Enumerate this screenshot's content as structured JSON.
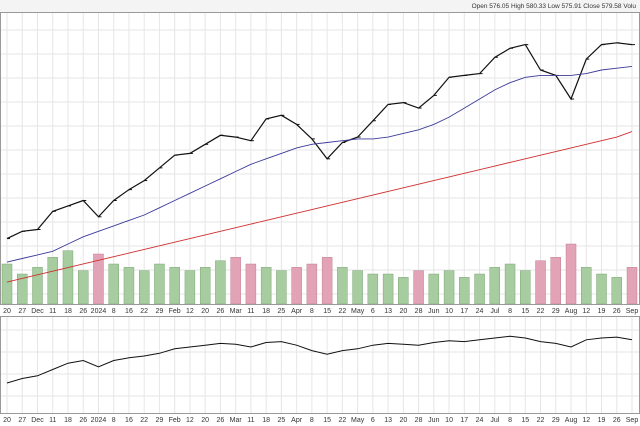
{
  "chart_data": [
    {
      "type": "line",
      "title": "Open 576.05 High 580.33 Low 575.91 Close 579.58 Volu",
      "categories": [
        "20",
        "27",
        "Dec",
        "11",
        "18",
        "26",
        "2024",
        "8",
        "16",
        "22",
        "29",
        "Feb",
        "12",
        "20",
        "26",
        "Mar",
        "11",
        "18",
        "25",
        "Apr",
        "8",
        "15",
        "22",
        "May",
        "6",
        "13",
        "20",
        "28",
        "Jun",
        "10",
        "17",
        "24",
        "Jul",
        "8",
        "15",
        "22",
        "29",
        "Aug",
        "12",
        "19",
        "26",
        "Sep"
      ],
      "ylim": [
        420,
        580
      ],
      "grid": true,
      "series": [
        {
          "color": "#111111",
          "values": [
            455,
            459,
            460,
            470,
            473,
            476,
            467,
            476,
            482,
            487,
            494,
            501,
            502,
            507,
            512,
            511,
            509,
            521,
            523,
            518,
            510,
            499,
            508,
            511,
            520,
            529,
            530,
            527,
            534,
            544,
            545,
            546,
            555,
            560,
            562,
            548,
            545,
            532,
            554,
            562,
            563,
            562
          ]
        },
        {
          "color": "#3b3b9b",
          "values": [
            442,
            444,
            446,
            448,
            452,
            456,
            459,
            462,
            465,
            468,
            472,
            476,
            480,
            484,
            488,
            492,
            496,
            499,
            502,
            505,
            507,
            508,
            509,
            510,
            510,
            511,
            513,
            515,
            518,
            522,
            527,
            532,
            537,
            541,
            544,
            545,
            545,
            545,
            546,
            548,
            549,
            550
          ]
        },
        {
          "color": "#d03030",
          "values": [
            431,
            433,
            435,
            437,
            439,
            441,
            443,
            445,
            447,
            449,
            451,
            453,
            455,
            457,
            459,
            461,
            463,
            465,
            467,
            469,
            471,
            473,
            475,
            477,
            479,
            481,
            483,
            485,
            487,
            489,
            491,
            493,
            495,
            497,
            499,
            501,
            503,
            505,
            507,
            509,
            511,
            514
          ]
        }
      ]
    },
    {
      "type": "bar",
      "ylim": [
        0,
        120
      ],
      "up_color": "#a6cc9f",
      "down_color": "#e3a3b6",
      "values": [
        60,
        45,
        55,
        70,
        80,
        50,
        75,
        60,
        55,
        50,
        60,
        55,
        50,
        55,
        65,
        70,
        60,
        55,
        50,
        55,
        60,
        70,
        55,
        50,
        45,
        45,
        40,
        50,
        45,
        50,
        40,
        45,
        55,
        60,
        50,
        65,
        70,
        90,
        55,
        45,
        40,
        55
      ]
    },
    {
      "type": "line",
      "ylim": [
        0,
        100
      ],
      "color": "#111111",
      "values": [
        30,
        35,
        38,
        45,
        52,
        55,
        48,
        55,
        58,
        60,
        63,
        68,
        70,
        72,
        74,
        73,
        70,
        75,
        76,
        72,
        66,
        62,
        66,
        68,
        72,
        74,
        73,
        72,
        75,
        77,
        76,
        78,
        80,
        82,
        80,
        76,
        74,
        70,
        78,
        80,
        81,
        78
      ]
    }
  ]
}
